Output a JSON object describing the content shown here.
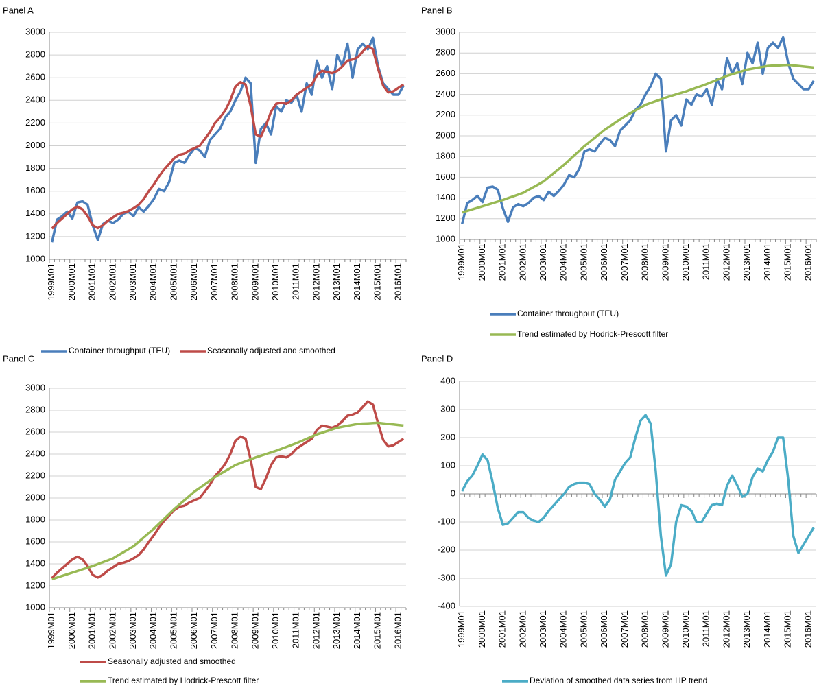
{
  "chart_data": [
    {
      "type": "line",
      "title": "Panel A",
      "categories": [
        "1999M01",
        null,
        null,
        null,
        "2000M01",
        null,
        null,
        null,
        "2001M01",
        null,
        null,
        null,
        "2002M01",
        null,
        null,
        null,
        "2003M01",
        null,
        null,
        null,
        "2004M01",
        null,
        null,
        null,
        "2005M01",
        null,
        null,
        null,
        "2006M01",
        null,
        null,
        null,
        "2007M01",
        null,
        null,
        null,
        "2008M01",
        null,
        null,
        null,
        "2009M01",
        null,
        null,
        null,
        "2010M01",
        null,
        null,
        null,
        "2011M01",
        null,
        null,
        null,
        "2012M01",
        null,
        null,
        null,
        "2013M01",
        null,
        null,
        null,
        "2014M01",
        null,
        null,
        null,
        "2015M01",
        null,
        null,
        null,
        "2016M01",
        null
      ],
      "ylim": [
        1000,
        3000
      ],
      "yticks": [
        1000,
        1200,
        1400,
        1600,
        1800,
        2000,
        2200,
        2400,
        2600,
        2800,
        3000
      ],
      "grid": true,
      "legend": "bottom",
      "series": [
        {
          "name": "Container throughput (TEU)",
          "color": "#4a7ebb",
          "values": [
            1150,
            1350,
            1380,
            1420,
            1360,
            1500,
            1510,
            1480,
            1300,
            1170,
            1310,
            1340,
            1320,
            1350,
            1400,
            1420,
            1380,
            1460,
            1420,
            1470,
            1530,
            1620,
            1600,
            1680,
            1850,
            1870,
            1850,
            1920,
            1980,
            1960,
            1900,
            2050,
            2100,
            2150,
            2250,
            2300,
            2400,
            2480,
            2600,
            2550,
            1850,
            2150,
            2200,
            2100,
            2350,
            2300,
            2400,
            2380,
            2450,
            2300,
            2550,
            2450,
            2750,
            2600,
            2700,
            2500,
            2800,
            2700,
            2900,
            2600,
            2850,
            2900,
            2850,
            2950,
            2700,
            2550,
            2500,
            2450,
            2450,
            2530
          ]
        },
        {
          "name": "Seasonally adjusted and smoothed",
          "color": "#be4b48",
          "values": [
            1270,
            1320,
            1360,
            1400,
            1440,
            1465,
            1440,
            1380,
            1300,
            1275,
            1300,
            1340,
            1370,
            1400,
            1410,
            1425,
            1450,
            1480,
            1530,
            1600,
            1660,
            1730,
            1790,
            1840,
            1890,
            1920,
            1930,
            1960,
            1980,
            2000,
            2060,
            2120,
            2200,
            2250,
            2310,
            2400,
            2520,
            2560,
            2540,
            2350,
            2100,
            2080,
            2180,
            2300,
            2370,
            2380,
            2370,
            2400,
            2450,
            2480,
            2510,
            2540,
            2620,
            2660,
            2650,
            2640,
            2660,
            2700,
            2750,
            2760,
            2780,
            2830,
            2880,
            2850,
            2680,
            2530,
            2470,
            2480,
            2510,
            2540
          ]
        }
      ]
    },
    {
      "type": "line",
      "title": "Panel B",
      "categories": [
        "1999M01",
        null,
        null,
        null,
        "2000M01",
        null,
        null,
        null,
        "2001M01",
        null,
        null,
        null,
        "2002M01",
        null,
        null,
        null,
        "2003M01",
        null,
        null,
        null,
        "2004M01",
        null,
        null,
        null,
        "2005M01",
        null,
        null,
        null,
        "2006M01",
        null,
        null,
        null,
        "2007M01",
        null,
        null,
        null,
        "2008M01",
        null,
        null,
        null,
        "2009M01",
        null,
        null,
        null,
        "2010M01",
        null,
        null,
        null,
        "2011M01",
        null,
        null,
        null,
        "2012M01",
        null,
        null,
        null,
        "2013M01",
        null,
        null,
        null,
        "2014M01",
        null,
        null,
        null,
        "2015M01",
        null,
        null,
        null,
        "2016M01",
        null
      ],
      "ylim": [
        1000,
        3000
      ],
      "yticks": [
        1000,
        1200,
        1400,
        1600,
        1800,
        2000,
        2200,
        2400,
        2600,
        2800,
        3000
      ],
      "grid": true,
      "legend": "bottom",
      "series": [
        {
          "name": "Container throughput (TEU)",
          "color": "#4a7ebb",
          "values": [
            1150,
            1350,
            1380,
            1420,
            1360,
            1500,
            1510,
            1480,
            1300,
            1170,
            1310,
            1340,
            1320,
            1350,
            1400,
            1420,
            1380,
            1460,
            1420,
            1470,
            1530,
            1620,
            1600,
            1680,
            1850,
            1870,
            1850,
            1920,
            1980,
            1960,
            1900,
            2050,
            2100,
            2150,
            2250,
            2300,
            2400,
            2480,
            2600,
            2550,
            1850,
            2150,
            2200,
            2100,
            2350,
            2300,
            2400,
            2380,
            2450,
            2300,
            2550,
            2450,
            2750,
            2600,
            2700,
            2500,
            2800,
            2700,
            2900,
            2600,
            2850,
            2900,
            2850,
            2950,
            2700,
            2550,
            2500,
            2450,
            2450,
            2530
          ]
        },
        {
          "name": "Trend estimated by Hodrick-Prescott filter",
          "color": "#98b954",
          "values": [
            1260,
            1275,
            1290,
            1305,
            1320,
            1335,
            1350,
            1365,
            1380,
            1398,
            1415,
            1432,
            1450,
            1478,
            1505,
            1532,
            1560,
            1600,
            1640,
            1680,
            1720,
            1765,
            1810,
            1855,
            1900,
            1940,
            1980,
            2020,
            2060,
            2092,
            2125,
            2158,
            2190,
            2218,
            2245,
            2272,
            2300,
            2318,
            2335,
            2352,
            2370,
            2385,
            2400,
            2415,
            2430,
            2448,
            2465,
            2482,
            2500,
            2520,
            2540,
            2560,
            2580,
            2595,
            2610,
            2625,
            2640,
            2649,
            2658,
            2666,
            2675,
            2678,
            2680,
            2683,
            2685,
            2680,
            2675,
            2670,
            2665,
            2660
          ]
        }
      ]
    },
    {
      "type": "line",
      "title": "Panel C",
      "categories": [
        "1999M01",
        null,
        null,
        null,
        "2000M01",
        null,
        null,
        null,
        "2001M01",
        null,
        null,
        null,
        "2002M01",
        null,
        null,
        null,
        "2003M01",
        null,
        null,
        null,
        "2004M01",
        null,
        null,
        null,
        "2005M01",
        null,
        null,
        null,
        "2006M01",
        null,
        null,
        null,
        "2007M01",
        null,
        null,
        null,
        "2008M01",
        null,
        null,
        null,
        "2009M01",
        null,
        null,
        null,
        "2010M01",
        null,
        null,
        null,
        "2011M01",
        null,
        null,
        null,
        "2012M01",
        null,
        null,
        null,
        "2013M01",
        null,
        null,
        null,
        "2014M01",
        null,
        null,
        null,
        "2015M01",
        null,
        null,
        null,
        "2016M01",
        null
      ],
      "ylim": [
        1000,
        3000
      ],
      "yticks": [
        1000,
        1200,
        1400,
        1600,
        1800,
        2000,
        2200,
        2400,
        2600,
        2800,
        3000
      ],
      "grid": true,
      "legend": "bottom",
      "series": [
        {
          "name": "Seasonally adjusted and smoothed",
          "color": "#be4b48",
          "values": [
            1270,
            1320,
            1360,
            1400,
            1440,
            1465,
            1440,
            1380,
            1300,
            1275,
            1300,
            1340,
            1370,
            1400,
            1410,
            1425,
            1450,
            1480,
            1530,
            1600,
            1660,
            1730,
            1790,
            1840,
            1890,
            1920,
            1930,
            1960,
            1980,
            2000,
            2060,
            2120,
            2200,
            2250,
            2310,
            2400,
            2520,
            2560,
            2540,
            2350,
            2100,
            2080,
            2180,
            2300,
            2370,
            2380,
            2370,
            2400,
            2450,
            2480,
            2510,
            2540,
            2620,
            2660,
            2650,
            2640,
            2660,
            2700,
            2750,
            2760,
            2780,
            2830,
            2880,
            2850,
            2680,
            2530,
            2470,
            2480,
            2510,
            2540
          ]
        },
        {
          "name": "Trend estimated by Hodrick-Prescott filter",
          "color": "#98b954",
          "values": [
            1260,
            1275,
            1290,
            1305,
            1320,
            1335,
            1350,
            1365,
            1380,
            1398,
            1415,
            1432,
            1450,
            1478,
            1505,
            1532,
            1560,
            1600,
            1640,
            1680,
            1720,
            1765,
            1810,
            1855,
            1900,
            1940,
            1980,
            2020,
            2060,
            2092,
            2125,
            2158,
            2190,
            2218,
            2245,
            2272,
            2300,
            2318,
            2335,
            2352,
            2370,
            2385,
            2400,
            2415,
            2430,
            2448,
            2465,
            2482,
            2500,
            2520,
            2540,
            2560,
            2580,
            2595,
            2610,
            2625,
            2640,
            2649,
            2658,
            2666,
            2675,
            2678,
            2680,
            2683,
            2685,
            2680,
            2675,
            2670,
            2665,
            2660
          ]
        }
      ]
    },
    {
      "type": "line",
      "title": "Panel D",
      "categories": [
        "1999M01",
        null,
        null,
        null,
        "2000M01",
        null,
        null,
        null,
        "2001M01",
        null,
        null,
        null,
        "2002M01",
        null,
        null,
        null,
        "2003M01",
        null,
        null,
        null,
        "2004M01",
        null,
        null,
        null,
        "2005M01",
        null,
        null,
        null,
        "2006M01",
        null,
        null,
        null,
        "2007M01",
        null,
        null,
        null,
        "2008M01",
        null,
        null,
        null,
        "2009M01",
        null,
        null,
        null,
        "2010M01",
        null,
        null,
        null,
        "2011M01",
        null,
        null,
        null,
        "2012M01",
        null,
        null,
        null,
        "2013M01",
        null,
        null,
        null,
        "2014M01",
        null,
        null,
        null,
        "2015M01",
        null,
        null,
        null,
        "2016M01",
        null
      ],
      "ylim": [
        -400,
        400
      ],
      "yticks": [
        -400,
        -300,
        -200,
        -100,
        0,
        100,
        200,
        300,
        400
      ],
      "grid": true,
      "legend": "bottom",
      "series": [
        {
          "name": "Deviation of smoothed data series from HP trend",
          "color": "#4bacc6",
          "values": [
            10,
            45,
            65,
            100,
            140,
            120,
            40,
            -50,
            -110,
            -105,
            -85,
            -65,
            -65,
            -85,
            -95,
            -100,
            -85,
            -60,
            -40,
            -20,
            0,
            25,
            35,
            40,
            40,
            35,
            0,
            -20,
            -45,
            -20,
            50,
            80,
            110,
            130,
            200,
            260,
            280,
            250,
            80,
            -150,
            -290,
            -250,
            -100,
            -40,
            -45,
            -60,
            -100,
            -100,
            -70,
            -40,
            -35,
            -40,
            30,
            65,
            30,
            -10,
            0,
            60,
            90,
            80,
            120,
            150,
            200,
            200,
            50,
            -150,
            -210,
            -180,
            -150,
            -120
          ]
        }
      ]
    }
  ]
}
